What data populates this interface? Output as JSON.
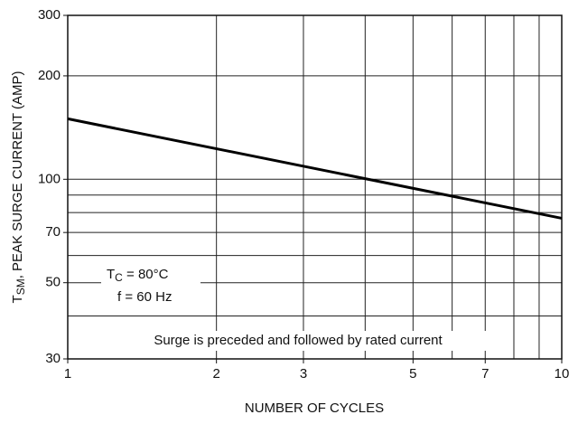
{
  "chart_data": {
    "type": "line",
    "x_label": "NUMBER OF CYCLES",
    "y_label_symbol": "T",
    "y_label_subscript": "SM",
    "y_label_text": ", PEAK SURGE CURRENT (AMP)",
    "annotation_tc_symbol": "T",
    "annotation_tc_subscript": "C",
    "annotation_tc_text": " = 80°C",
    "annotation_f": "f = 60 Hz",
    "annotation_note": "Surge is preceded and followed by rated current",
    "log_x": true,
    "log_y": true,
    "grid": true,
    "xlim": [
      1,
      10
    ],
    "xticks": [
      1,
      2,
      3,
      5,
      7,
      10
    ],
    "xgrid": [
      1,
      2,
      3,
      4,
      5,
      6,
      7,
      8,
      9,
      10
    ],
    "ylim": [
      30,
      300
    ],
    "yticks": [
      30,
      50,
      70,
      100,
      200,
      300
    ],
    "ygrid": [
      30,
      40,
      50,
      60,
      70,
      80,
      90,
      100,
      200,
      300
    ],
    "series": [
      {
        "x": [
          1,
          10
        ],
        "values": [
          150,
          77
        ],
        "color": "#000000"
      }
    ]
  }
}
